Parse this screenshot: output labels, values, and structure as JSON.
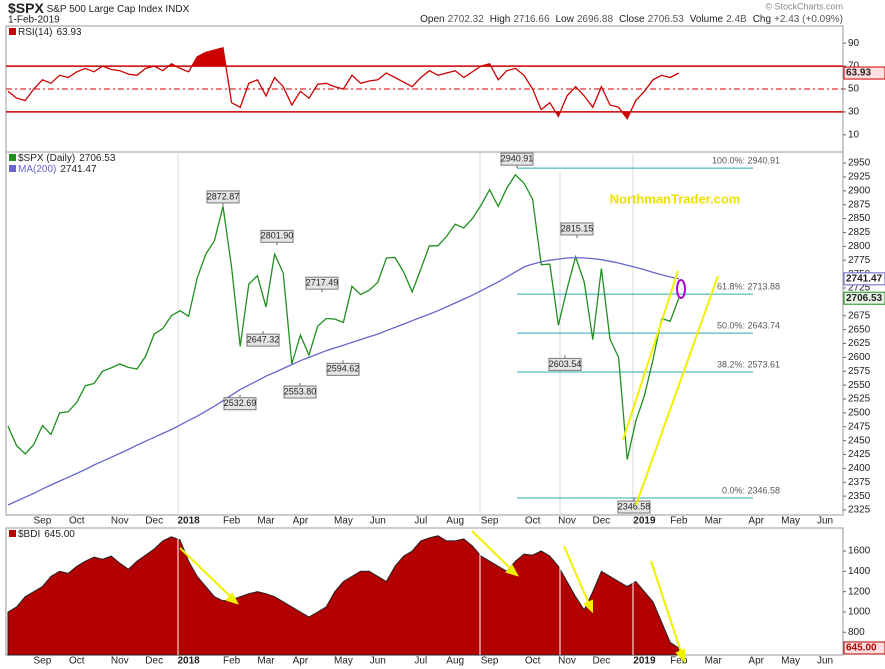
{
  "header": {
    "symbol": "$SPX",
    "name": "S&P 500 Large Cap Index",
    "exchange": "INDX",
    "date": "1-Feb-2019",
    "copyright": "© StockCharts.com",
    "quote": [
      {
        "label": "Open",
        "value": "2702.32"
      },
      {
        "label": "High",
        "value": "2716.66"
      },
      {
        "label": "Low",
        "value": "2696.88"
      },
      {
        "label": "Close",
        "value": "2706.53"
      },
      {
        "label": "Volume",
        "value": "2.4B"
      },
      {
        "label": "Chg",
        "value": "+2.43 (+0.09%)"
      }
    ]
  },
  "chart_data": [
    {
      "type": "line",
      "ylim": [
        -5,
        105
      ],
      "yticks": [
        90,
        70,
        50,
        30,
        10
      ],
      "levels": [
        70,
        50,
        30
      ],
      "series": [
        {
          "name": "RSI(14)",
          "color": "#cc0000",
          "values": [
            48,
            42,
            40,
            50,
            58,
            55,
            62,
            60,
            65,
            68,
            65,
            70,
            67,
            66,
            63,
            62,
            68,
            70,
            66,
            72,
            68,
            65,
            78,
            82,
            84,
            86,
            38,
            34,
            55,
            58,
            44,
            60,
            52,
            36,
            48,
            42,
            54,
            55,
            52,
            50,
            62,
            55,
            57,
            58,
            64,
            60,
            56,
            52,
            60,
            66,
            62,
            64,
            66,
            60,
            65,
            70,
            72,
            58,
            66,
            68,
            62,
            50,
            32,
            38,
            26,
            44,
            52,
            44,
            34,
            52,
            36,
            34,
            24,
            40,
            48,
            58,
            62,
            60,
            63.93
          ]
        }
      ]
    },
    {
      "type": "line",
      "ylim": [
        2316,
        2970
      ],
      "yticks": [
        2325,
        2350,
        2375,
        2400,
        2425,
        2450,
        2475,
        2500,
        2525,
        2550,
        2575,
        2600,
        2625,
        2650,
        2675,
        2700,
        2725,
        2750,
        2775,
        2800,
        2825,
        2850,
        2875,
        2900,
        2925,
        2950
      ],
      "categories": [
        null,
        null,
        null,
        null,
        "Sep",
        null,
        null,
        null,
        "Oct",
        null,
        null,
        null,
        null,
        "Nov",
        null,
        null,
        null,
        "Dec",
        null,
        null,
        null,
        "2018",
        null,
        null,
        null,
        null,
        "Feb",
        null,
        null,
        null,
        "Mar",
        null,
        null,
        null,
        "Apr",
        null,
        null,
        null,
        null,
        "May",
        null,
        null,
        null,
        "Jun",
        null,
        null,
        null,
        null,
        "Jul",
        null,
        null,
        null,
        "Aug",
        null,
        null,
        null,
        "Sep",
        null,
        null,
        null,
        null,
        "Oct",
        null,
        null,
        null,
        "Nov",
        null,
        null,
        null,
        "Dec",
        null,
        null,
        null,
        null,
        "2019",
        null,
        null,
        null,
        "Feb",
        null,
        null,
        null,
        "Mar",
        null,
        null,
        null,
        null,
        "Apr",
        null,
        null,
        null,
        "May",
        null,
        null,
        null,
        "Jun",
        null,
        null
      ],
      "series": [
        {
          "name": "$SPX (Daily)",
          "color": "#1f8f1f",
          "values": [
            2476,
            2441,
            2426,
            2443,
            2477,
            2461,
            2500,
            2502,
            2519,
            2549,
            2553,
            2575,
            2581,
            2588,
            2582,
            2579,
            2602,
            2642,
            2652,
            2675,
            2684,
            2674,
            2743,
            2786,
            2810,
            2872,
            2762,
            2620,
            2732,
            2747,
            2691,
            2786,
            2752,
            2588,
            2640,
            2604,
            2656,
            2670,
            2669,
            2663,
            2728,
            2713,
            2721,
            2735,
            2779,
            2780,
            2754,
            2718,
            2759,
            2801,
            2801,
            2818,
            2840,
            2833,
            2850,
            2874,
            2902,
            2872,
            2905,
            2929,
            2914,
            2885,
            2767,
            2768,
            2658,
            2723,
            2781,
            2736,
            2632,
            2760,
            2633,
            2600,
            2416,
            2485,
            2531,
            2596,
            2670,
            2665,
            2706.53,
            null,
            null,
            null,
            null,
            null,
            null,
            null,
            null,
            null,
            null,
            null,
            null,
            null,
            null,
            null,
            null,
            null,
            null,
            null
          ]
        },
        {
          "name": "MA(200)",
          "color": "#6666cc",
          "values": [
            2334,
            2341,
            2348,
            2355,
            2363,
            2370,
            2377,
            2384,
            2391,
            2398,
            2406,
            2413,
            2420,
            2427,
            2434,
            2442,
            2449,
            2456,
            2463,
            2470,
            2478,
            2486,
            2494,
            2503,
            2512,
            2522,
            2532,
            2542,
            2550,
            2558,
            2566,
            2573,
            2580,
            2587,
            2594,
            2600,
            2606,
            2612,
            2617,
            2622,
            2627,
            2632,
            2637,
            2642,
            2648,
            2654,
            2660,
            2666,
            2672,
            2678,
            2684,
            2691,
            2698,
            2705,
            2712,
            2720,
            2728,
            2736,
            2745,
            2754,
            2763,
            2768,
            2772,
            2775,
            2777,
            2779,
            2780,
            2779,
            2778,
            2776,
            2773,
            2770,
            2766,
            2762,
            2758,
            2753,
            2749,
            2745,
            2741.47,
            null,
            null,
            null,
            null,
            null,
            null,
            null,
            null,
            null,
            null,
            null,
            null,
            null,
            null,
            null,
            null,
            null,
            null,
            null
          ]
        }
      ],
      "price_labels": [
        2872.87,
        {
          "value": 2801.9,
          "label": "2801.90"
        },
        2717.49,
        2940.91,
        2815.15,
        2532.69,
        2647.32,
        {
          "value": 2553.8,
          "label": "2553.80"
        },
        2594.62,
        2603.54,
        2346.58
      ],
      "fibonacci": [
        {
          "value": 2940.91,
          "label": "100.0%: 2940.91"
        },
        {
          "value": 2713.88,
          "label": "61.8%: 2713.88"
        },
        {
          "value": 2643.74,
          "label": "50.0%: 2643.74"
        },
        {
          "value": 2573.61,
          "label": "38.2%: 2573.61"
        },
        {
          "value": 2346.58,
          "label": "0.0%: 2346.58"
        }
      ],
      "annotation": "NorthmanTrader.com"
    },
    {
      "type": "area",
      "ylim": [
        576,
        1827
      ],
      "yticks": [
        800,
        1000,
        1200,
        1400,
        1600
      ],
      "categories": [
        null,
        null,
        null,
        null,
        "Sep",
        null,
        null,
        null,
        "Oct",
        null,
        null,
        null,
        null,
        "Nov",
        null,
        null,
        null,
        "Dec",
        null,
        null,
        null,
        "2018",
        null,
        null,
        null,
        null,
        "Feb",
        null,
        null,
        null,
        "Mar",
        null,
        null,
        null,
        "Apr",
        null,
        null,
        null,
        null,
        "May",
        null,
        null,
        null,
        "Jun",
        null,
        null,
        null,
        null,
        "Jul",
        null,
        null,
        null,
        "Aug",
        null,
        null,
        null,
        "Sep",
        null,
        null,
        null,
        null,
        "Oct",
        null,
        null,
        null,
        "Nov",
        null,
        null,
        null,
        "Dec",
        null,
        null,
        null,
        null,
        "2019",
        null,
        null,
        null,
        "Feb",
        null,
        null,
        null,
        "Mar",
        null,
        null,
        null,
        null,
        "Apr",
        null,
        null,
        null,
        "May",
        null,
        null,
        null,
        "Jun",
        null,
        null
      ],
      "series": [
        {
          "name": "$BDI",
          "color": "#b30000",
          "values": [
            1000,
            1050,
            1150,
            1200,
            1250,
            1350,
            1400,
            1380,
            1450,
            1500,
            1540,
            1520,
            1550,
            1480,
            1420,
            1500,
            1560,
            1620,
            1700,
            1740,
            1710,
            1500,
            1350,
            1250,
            1150,
            1110,
            1120,
            1150,
            1180,
            1200,
            1180,
            1150,
            1100,
            1050,
            1000,
            950,
            1000,
            1050,
            1200,
            1300,
            1350,
            1400,
            1400,
            1350,
            1300,
            1450,
            1550,
            1600,
            1700,
            1730,
            1750,
            1700,
            1700,
            1720,
            1650,
            1550,
            1500,
            1450,
            1400,
            1500,
            1570,
            1560,
            1600,
            1550,
            1450,
            1300,
            1150,
            1020,
            1200,
            1400,
            1350,
            1300,
            1250,
            1300,
            1200,
            1100,
            900,
            700,
            645,
            null,
            null,
            null,
            null,
            null,
            null,
            null,
            null,
            null,
            null,
            null,
            null,
            null,
            null,
            null,
            null,
            null,
            null,
            null
          ],
          "value_labels": [
            null,
            null,
            null,
            null,
            null,
            null,
            null,
            null,
            null,
            null,
            null,
            null,
            null,
            null,
            null,
            null,
            null,
            null,
            null,
            null,
            null,
            null,
            null,
            null,
            null,
            null,
            null,
            null,
            null,
            null,
            null,
            null,
            null,
            null,
            null,
            null,
            null,
            null,
            null,
            null,
            null,
            null,
            null,
            null,
            null,
            null,
            null,
            null,
            null,
            null,
            null,
            null,
            null,
            null,
            null,
            null,
            null,
            null,
            null,
            null,
            null,
            null,
            null,
            null,
            null,
            null,
            null,
            null,
            null,
            null,
            null,
            null,
            null,
            null,
            null,
            null,
            null,
            null,
            "645.00",
            null,
            null,
            null,
            null,
            null,
            null,
            null,
            null,
            null,
            null,
            null,
            null,
            null,
            null,
            null,
            null,
            null,
            null,
            null
          ]
        }
      ]
    }
  ]
}
